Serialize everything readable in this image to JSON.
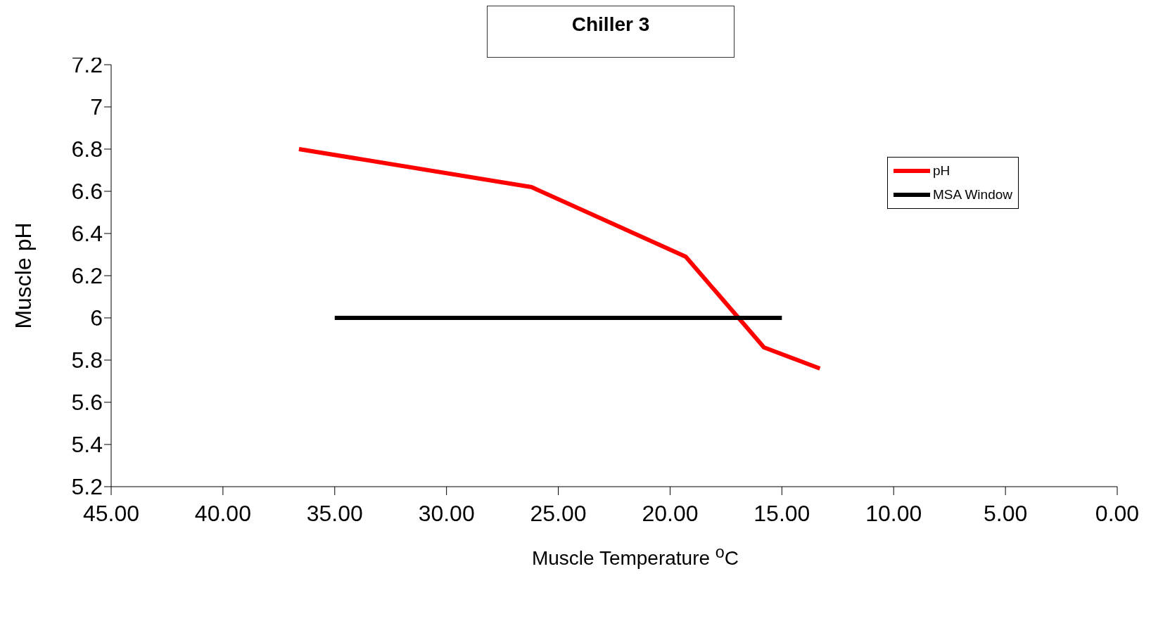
{
  "chart_data": {
    "type": "line",
    "title": "Chiller 3",
    "xlabel": "Muscle Temperature $^{o}$C",
    "ylabel": "Muscle pH",
    "xlim": [
      45,
      0
    ],
    "xticks": [
      {
        "value": 45,
        "label": "45.00"
      },
      {
        "value": 40,
        "label": "40.00"
      },
      {
        "value": 35,
        "label": "35.00"
      },
      {
        "value": 30,
        "label": "30.00"
      },
      {
        "value": 25,
        "label": "25.00"
      },
      {
        "value": 20,
        "label": "20.00"
      },
      {
        "value": 15,
        "label": "15.00"
      },
      {
        "value": 10,
        "label": "10.00"
      },
      {
        "value": 5,
        "label": "5.00"
      },
      {
        "value": 0,
        "label": "0.00"
      }
    ],
    "ylim": [
      5.2,
      7.2
    ],
    "yticks": [
      5.2,
      5.4,
      5.6,
      5.8,
      6,
      6.2,
      6.4,
      6.6,
      6.8,
      7,
      7.2
    ],
    "series": [
      {
        "name": "pH",
        "color": "#ff0000",
        "x": [
          36.6,
          26.2,
          19.3,
          15.8,
          13.3
        ],
        "values": [
          6.8,
          6.62,
          6.29,
          5.86,
          5.76
        ]
      },
      {
        "name": "MSA Window",
        "color": "#000000",
        "x": [
          35,
          15
        ],
        "values": [
          6,
          6
        ]
      }
    ],
    "legend": "right",
    "marker": "none",
    "line_style": "solid"
  }
}
